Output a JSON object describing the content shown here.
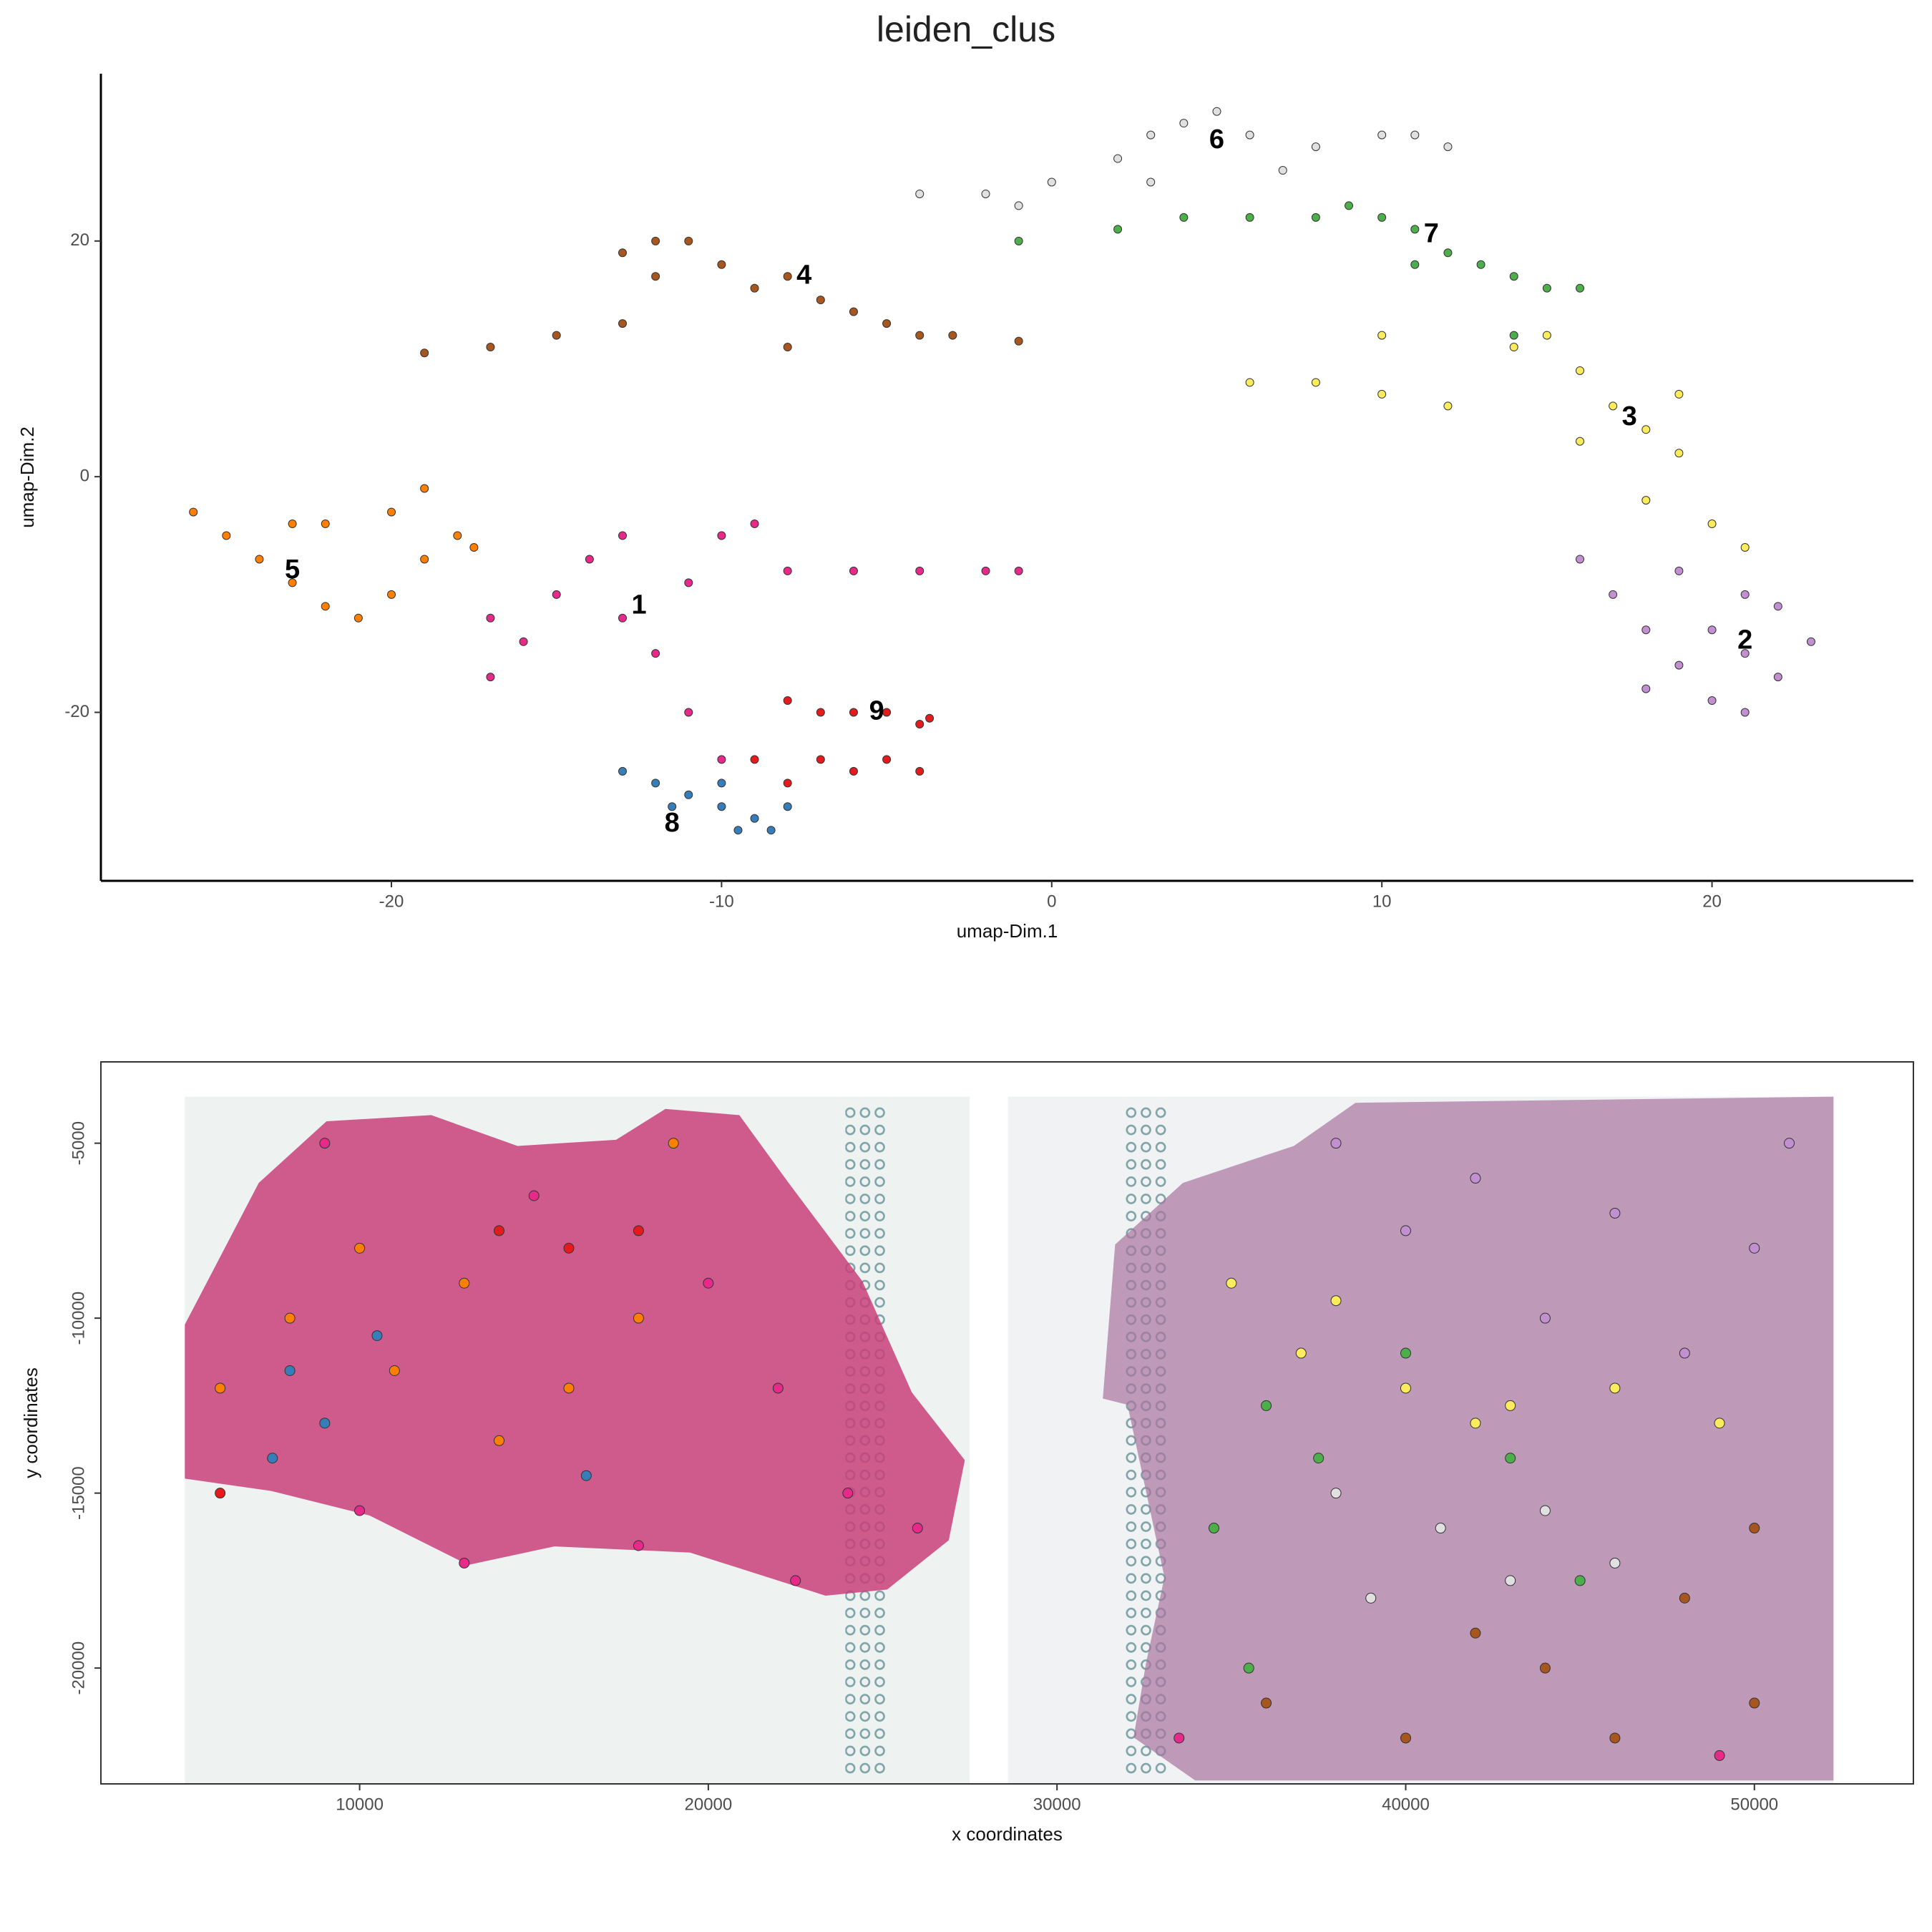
{
  "chart_data": [
    {
      "type": "scatter",
      "title": "leiden_clus",
      "x_label": "umap-Dim.1",
      "y_label": "umap-Dim.2",
      "xlim": [
        -28.8,
        26.1
      ],
      "ylim": [
        -34.3,
        34.2
      ],
      "xticks": [
        -20,
        -10,
        0,
        10,
        20
      ],
      "yticks": [
        -20,
        0,
        20
      ],
      "series": [
        {
          "color": "#e7298a",
          "x": [
            -17,
            -16,
            -15,
            -14,
            -13,
            -12,
            -11,
            -10,
            -9,
            -11,
            -10,
            -8,
            -6,
            -4,
            -2,
            -1,
            -17,
            -13
          ],
          "y": [
            -17,
            -14,
            -10,
            -7,
            -12,
            -15,
            -9,
            -5,
            -4,
            -20,
            -24,
            -8,
            -8,
            -8,
            -8,
            -8,
            -12,
            -5
          ]
        },
        {
          "color": "#c28fd0",
          "x": [
            16,
            17,
            18,
            19,
            20,
            21,
            22,
            23,
            22,
            21,
            20,
            19,
            18,
            21
          ],
          "y": [
            -7,
            -10,
            -13,
            -16,
            -19,
            -20,
            -17,
            -14,
            -11,
            -10,
            -13,
            -8,
            -18,
            -15
          ]
        },
        {
          "color": "#fbec5d",
          "x": [
            6,
            8,
            10,
            12,
            14,
            16,
            17,
            18,
            19,
            18,
            20,
            21,
            16,
            19,
            15,
            10
          ],
          "y": [
            8,
            8,
            7,
            6,
            11,
            9,
            6,
            4,
            2,
            -2,
            -4,
            -6,
            3,
            7,
            12,
            12
          ]
        },
        {
          "color": "#a6561e",
          "x": [
            -19,
            -17,
            -15,
            -13,
            -13,
            -12,
            -11,
            -10,
            -9,
            -8,
            -7,
            -6,
            -5,
            -4,
            -3,
            -1,
            -8,
            -12
          ],
          "y": [
            10.5,
            11,
            12,
            13,
            19,
            17,
            20,
            18,
            16,
            17,
            15,
            14,
            13,
            12,
            12,
            11.5,
            11,
            20
          ]
        },
        {
          "color": "#ff7f00",
          "x": [
            -26,
            -25,
            -24,
            -23,
            -22,
            -21,
            -20,
            -19,
            -18,
            -20,
            -22,
            -19,
            -17.5,
            -23
          ],
          "y": [
            -3,
            -5,
            -7,
            -9,
            -11,
            -12,
            -10,
            -7,
            -5,
            -3,
            -4,
            -1,
            -6,
            -4
          ]
        },
        {
          "color": "#e0e0e0",
          "x": [
            -4,
            -2,
            0,
            2,
            3,
            4,
            5,
            6,
            8,
            10,
            11,
            12,
            7,
            3,
            -1
          ],
          "y": [
            24,
            24,
            25,
            27,
            29,
            30,
            31,
            29,
            28,
            29,
            29,
            28,
            26,
            25,
            23
          ]
        },
        {
          "color": "#4daf4a",
          "x": [
            -1,
            2,
            4,
            6,
            8,
            9,
            10,
            11,
            12,
            13,
            14,
            15,
            16,
            11,
            14
          ],
          "y": [
            20,
            21,
            22,
            22,
            22,
            23,
            22,
            21,
            19,
            18,
            17,
            16,
            16,
            18,
            12
          ]
        },
        {
          "color": "#377eb8",
          "x": [
            -13,
            -12,
            -11,
            -10,
            -9,
            -8.5,
            -11.5,
            -9.5,
            -8,
            -10
          ],
          "y": [
            -25,
            -26,
            -27,
            -28,
            -29,
            -30,
            -28,
            -30,
            -28,
            -26
          ]
        },
        {
          "color": "#e41a1c",
          "x": [
            -8,
            -7,
            -6,
            -5,
            -4,
            -3.7,
            -7,
            -6,
            -5,
            -4,
            -9,
            -8
          ],
          "y": [
            -19,
            -20,
            -20,
            -20,
            -21,
            -20.5,
            -24,
            -25,
            -24,
            -25,
            -24,
            -26
          ]
        }
      ],
      "annotations": [
        {
          "text": "1",
          "x": -12.5,
          "y": -11
        },
        {
          "text": "2",
          "x": 21,
          "y": -14
        },
        {
          "text": "3",
          "x": 17.5,
          "y": 5
        },
        {
          "text": "4",
          "x": -7.5,
          "y": 17
        },
        {
          "text": "5",
          "x": -23,
          "y": -8
        },
        {
          "text": "6",
          "x": 5,
          "y": 28.5
        },
        {
          "text": "7",
          "x": 11.5,
          "y": 20.5
        },
        {
          "text": "8",
          "x": -11.5,
          "y": -29.5
        },
        {
          "text": "9",
          "x": -5.3,
          "y": -20
        }
      ]
    },
    {
      "type": "scatter",
      "x_label": "x coordinates",
      "y_label": "y coordinates",
      "xlim": [
        2580,
        54560
      ],
      "ylim": [
        -23310,
        -2676
      ],
      "xticks": [
        10000,
        20000,
        30000,
        40000,
        50000
      ],
      "yticks": [
        -5000,
        -10000,
        -15000,
        -20000
      ],
      "series": [
        {
          "color": "#e7298a",
          "x": [
            9000,
            15000,
            20000,
            22000,
            24000,
            26000,
            18000,
            10000,
            13000,
            22500,
            33500,
            49000
          ],
          "y": [
            -5000,
            -6500,
            -9000,
            -12000,
            -15000,
            -16000,
            -16500,
            -15500,
            -17000,
            -17500,
            -22000,
            -22500
          ]
        },
        {
          "color": "#c28fd0",
          "x": [
            38000,
            42000,
            46000,
            50000,
            44000,
            48000,
            40000,
            51000
          ],
          "y": [
            -5000,
            -6000,
            -7000,
            -8000,
            -10000,
            -11000,
            -7500,
            -5000
          ]
        },
        {
          "color": "#fbec5d",
          "x": [
            35000,
            37000,
            40000,
            43000,
            46000,
            49000,
            38000,
            42000
          ],
          "y": [
            -9000,
            -11000,
            -12000,
            -12500,
            -12000,
            -13000,
            -9500,
            -13000
          ]
        },
        {
          "color": "#a6561e",
          "x": [
            36000,
            40000,
            44000,
            48000,
            50000,
            46000,
            42000,
            50000
          ],
          "y": [
            -21000,
            -22000,
            -20000,
            -18000,
            -16000,
            -22000,
            -19000,
            -21000
          ]
        },
        {
          "color": "#ff7f00",
          "x": [
            6000,
            8000,
            10000,
            13000,
            16000,
            18000,
            19000,
            14000,
            11000
          ],
          "y": [
            -12000,
            -10000,
            -8000,
            -9000,
            -12000,
            -10000,
            -5000,
            -13500,
            -11500
          ]
        },
        {
          "color": "#e0e0e0",
          "x": [
            38000,
            41000,
            44000,
            46000,
            39000,
            43000
          ],
          "y": [
            -15000,
            -16000,
            -15500,
            -17000,
            -18000,
            -17500
          ]
        },
        {
          "color": "#4daf4a",
          "x": [
            34500,
            35500,
            37500,
            40000,
            43000,
            45000,
            36000
          ],
          "y": [
            -16000,
            -20000,
            -14000,
            -11000,
            -14000,
            -17500,
            -12500
          ]
        },
        {
          "color": "#377eb8",
          "x": [
            8000,
            9000,
            7500,
            10500,
            16500
          ],
          "y": [
            -11500,
            -13000,
            -14000,
            -10500,
            -14500
          ]
        },
        {
          "color": "#e41a1c",
          "x": [
            14000,
            16000,
            18000,
            6000
          ],
          "y": [
            -7500,
            -8000,
            -7500,
            -15000
          ]
        }
      ]
    }
  ]
}
